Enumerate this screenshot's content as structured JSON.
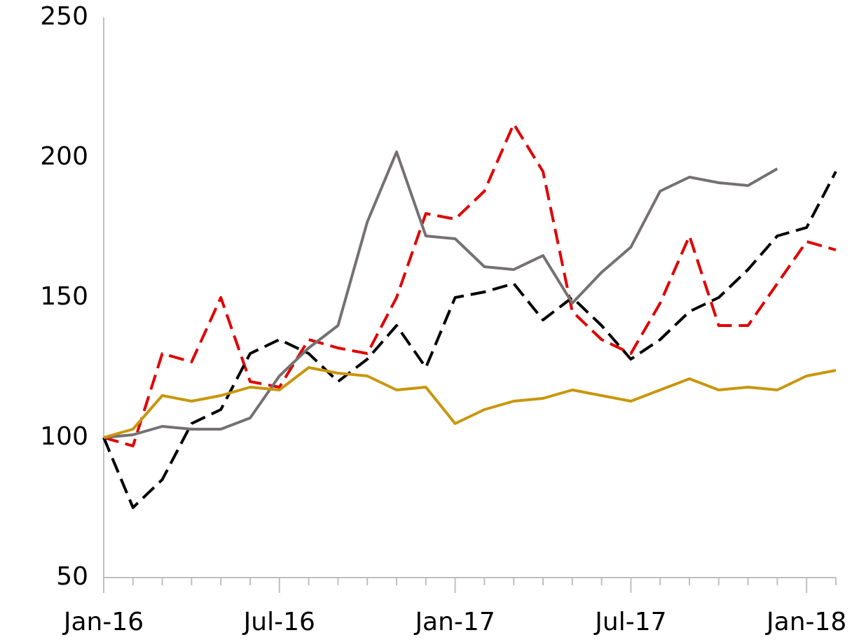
{
  "chart_data": {
    "type": "line",
    "categories": [
      "Jan-16",
      null,
      null,
      null,
      null,
      null,
      "Jul-16",
      null,
      null,
      null,
      null,
      null,
      "Jan-17",
      null,
      null,
      null,
      null,
      null,
      "Jul-17",
      null,
      null,
      null,
      null,
      null,
      "Jan-18",
      null
    ],
    "series": [
      {
        "color": "#e00000",
        "style": "dashed",
        "values": [
          100,
          97,
          130,
          127,
          150,
          120,
          118,
          135,
          132,
          130,
          150,
          180,
          178,
          188,
          212,
          195,
          145,
          135,
          130,
          148,
          172,
          140,
          140,
          155,
          170,
          167
        ]
      },
      {
        "color": "#000000",
        "style": "dashed",
        "values": [
          100,
          75,
          85,
          105,
          110,
          130,
          135,
          130,
          120,
          128,
          140,
          125,
          150,
          152,
          155,
          142,
          150,
          140,
          128,
          135,
          145,
          150,
          160,
          172,
          175,
          195
        ]
      },
      {
        "color": "#767171",
        "style": "solid",
        "values": [
          100,
          101,
          104,
          103,
          103,
          107,
          122,
          132,
          140,
          177,
          202,
          172,
          171,
          161,
          160,
          165,
          148,
          159,
          168,
          188,
          193,
          191,
          190,
          196,
          null,
          null
        ]
      },
      {
        "color": "#c9960c",
        "style": "solid",
        "values": [
          100,
          103,
          115,
          113,
          115,
          118,
          117,
          125,
          123,
          122,
          117,
          118,
          105,
          110,
          113,
          114,
          117,
          115,
          113,
          117,
          121,
          117,
          118,
          117,
          122,
          124
        ]
      }
    ],
    "ylim": [
      50,
      250
    ],
    "yticks": [
      50,
      100,
      150,
      200,
      250
    ],
    "grid": false
  }
}
